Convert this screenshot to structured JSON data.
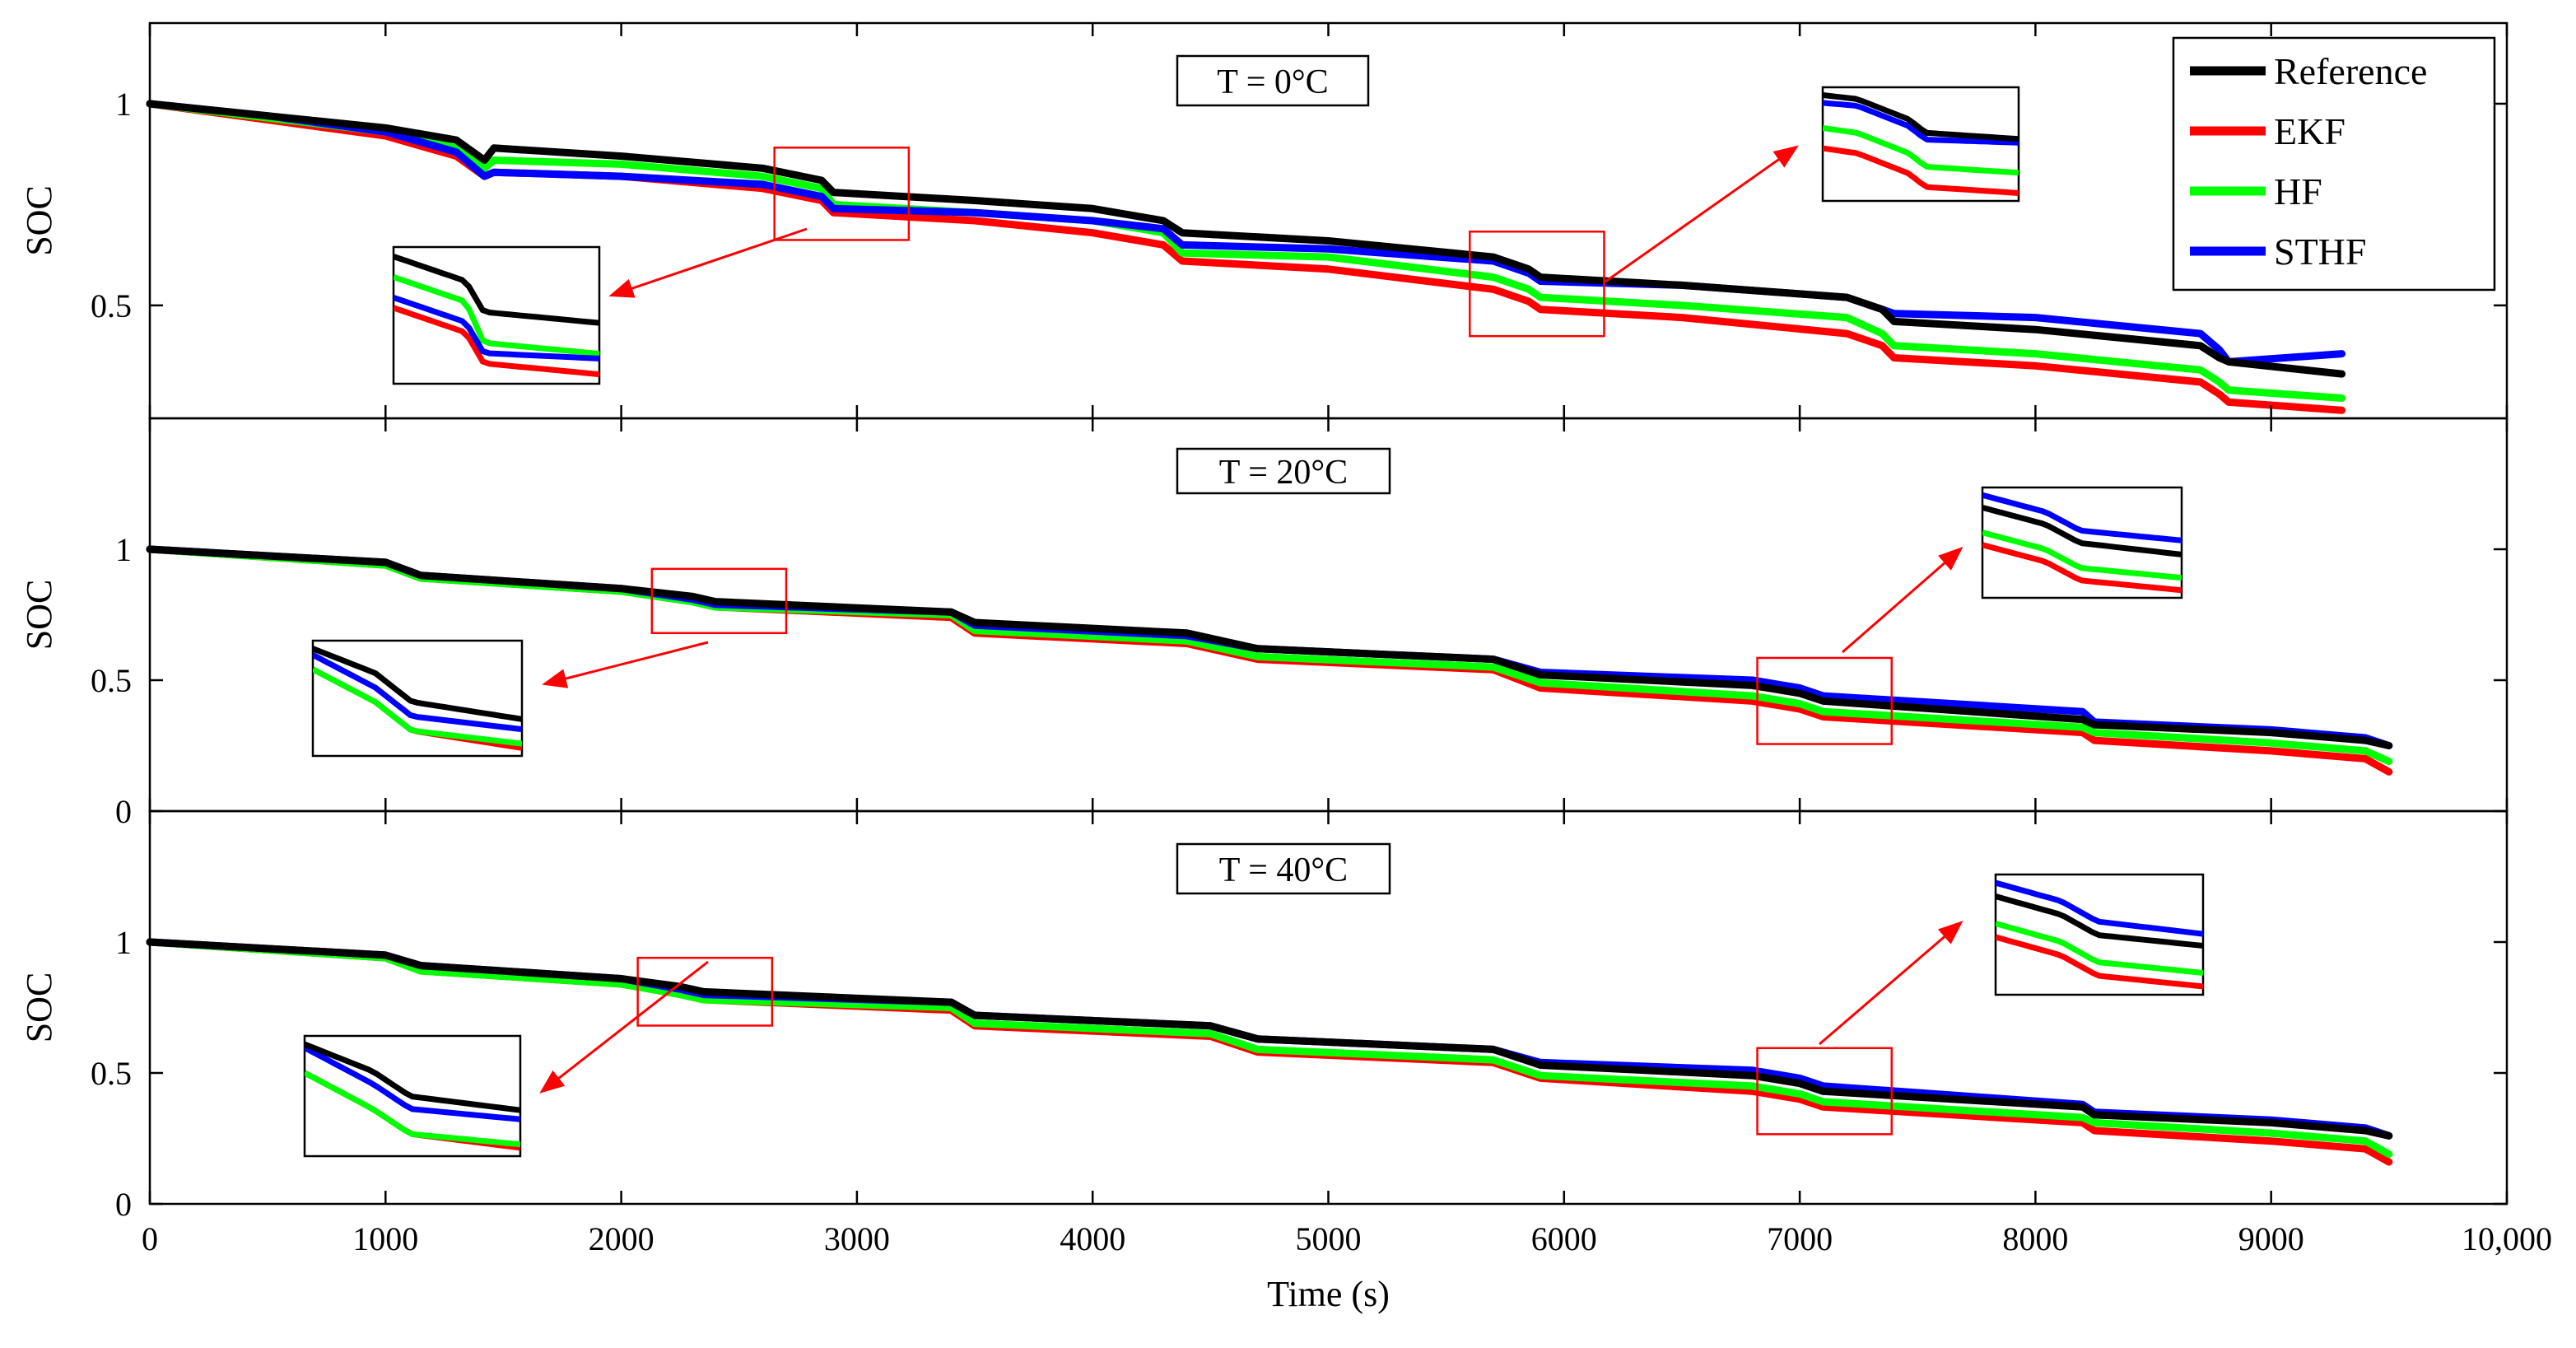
{
  "chart_data": {
    "type": "line",
    "xlabel": "Time (s)",
    "ylabel": "SOC",
    "xlim": [
      0,
      10000
    ],
    "x_ticks": [
      "0",
      "1000",
      "2000",
      "3000",
      "4000",
      "5000",
      "6000",
      "7000",
      "8000",
      "9000",
      "10,000"
    ],
    "x_tick_values": [
      0,
      1000,
      2000,
      3000,
      4000,
      5000,
      6000,
      7000,
      8000,
      9000,
      10000
    ],
    "legend": {
      "placement": "top-right",
      "entries": [
        {
          "name": "Reference",
          "color": "#000000"
        },
        {
          "name": "EKF",
          "color": "#ff0000"
        },
        {
          "name": "HF",
          "color": "#00ff00"
        },
        {
          "name": "STHF",
          "color": "#0000ff"
        }
      ]
    },
    "panels": [
      {
        "label": "T = 0°C",
        "ylim": [
          0.22,
          1.2
        ],
        "y_ticks": [
          "0.5",
          "1"
        ],
        "y_tick_values": [
          0.5,
          1
        ],
        "zoom_regions": [
          [
            2650,
            3220
          ],
          [
            5600,
            6170
          ]
        ],
        "series": [
          {
            "name": "Reference",
            "x": [
              0,
              500,
              1000,
              1300,
              1420,
              1460,
              2000,
              2600,
              2850,
              2900,
              3500,
              4000,
              4300,
              4380,
              5000,
              5700,
              5850,
              5900,
              6500,
              7200,
              7350,
              7400,
              8000,
              8700,
              8780,
              8820,
              9300
            ],
            "y": [
              1,
              0.97,
              0.94,
              0.91,
              0.86,
              0.89,
              0.87,
              0.84,
              0.81,
              0.78,
              0.76,
              0.74,
              0.71,
              0.68,
              0.66,
              0.62,
              0.59,
              0.57,
              0.55,
              0.52,
              0.49,
              0.46,
              0.44,
              0.4,
              0.37,
              0.36,
              0.33
            ]
          },
          {
            "name": "EKF",
            "x": [
              0,
              500,
              1000,
              1300,
              1420,
              1460,
              2000,
              2600,
              2850,
              2900,
              3500,
              4000,
              4300,
              4380,
              5000,
              5700,
              5850,
              5900,
              6500,
              7200,
              7350,
              7400,
              8000,
              8700,
              8780,
              8820,
              9300
            ],
            "y": [
              1,
              0.96,
              0.92,
              0.87,
              0.82,
              0.83,
              0.82,
              0.79,
              0.76,
              0.73,
              0.71,
              0.68,
              0.65,
              0.61,
              0.59,
              0.54,
              0.51,
              0.49,
              0.47,
              0.43,
              0.4,
              0.37,
              0.35,
              0.31,
              0.28,
              0.26,
              0.24
            ]
          },
          {
            "name": "HF",
            "x": [
              0,
              500,
              1000,
              1300,
              1420,
              1460,
              2000,
              2600,
              2850,
              2900,
              3500,
              4000,
              4300,
              4380,
              5000,
              5700,
              5850,
              5900,
              6500,
              7200,
              7350,
              7400,
              8000,
              8700,
              8780,
              8820,
              9300
            ],
            "y": [
              1,
              0.965,
              0.93,
              0.89,
              0.84,
              0.86,
              0.85,
              0.82,
              0.79,
              0.75,
              0.73,
              0.71,
              0.68,
              0.63,
              0.62,
              0.57,
              0.54,
              0.52,
              0.5,
              0.47,
              0.43,
              0.4,
              0.38,
              0.34,
              0.31,
              0.29,
              0.27
            ]
          },
          {
            "name": "STHF",
            "x": [
              0,
              500,
              1000,
              1300,
              1420,
              1460,
              2000,
              2600,
              2850,
              2900,
              3500,
              4000,
              4300,
              4380,
              5000,
              5700,
              5850,
              5900,
              6500,
              7200,
              7350,
              7400,
              8000,
              8700,
              8780,
              8820,
              9300
            ],
            "y": [
              1,
              0.97,
              0.93,
              0.88,
              0.82,
              0.83,
              0.82,
              0.8,
              0.77,
              0.74,
              0.73,
              0.71,
              0.69,
              0.65,
              0.64,
              0.61,
              0.58,
              0.56,
              0.55,
              0.52,
              0.49,
              0.48,
              0.47,
              0.43,
              0.39,
              0.36,
              0.38
            ]
          }
        ]
      },
      {
        "label": "T = 20°C",
        "ylim": [
          0,
          1.5
        ],
        "y_ticks": [
          "0",
          "0.5",
          "1"
        ],
        "y_tick_values": [
          0,
          0.5,
          1
        ],
        "zoom_regions": [
          [
            2130,
            2700
          ],
          [
            6820,
            7390
          ]
        ],
        "series": [
          {
            "name": "Reference",
            "x": [
              0,
              1000,
              1150,
              2000,
              2300,
              2400,
              3400,
              3500,
              4400,
              4700,
              5700,
              5900,
              6800,
              7000,
              7100,
              8200,
              8250,
              9000,
              9400,
              9500
            ],
            "y": [
              1,
              0.95,
              0.9,
              0.85,
              0.82,
              0.8,
              0.76,
              0.72,
              0.68,
              0.62,
              0.58,
              0.52,
              0.48,
              0.45,
              0.42,
              0.35,
              0.33,
              0.3,
              0.27,
              0.25
            ]
          },
          {
            "name": "EKF",
            "x": [
              0,
              1000,
              1150,
              2000,
              2300,
              2400,
              3400,
              3500,
              4400,
              4700,
              5700,
              5900,
              6800,
              7000,
              7100,
              8200,
              8250,
              9000,
              9400,
              9500
            ],
            "y": [
              1,
              0.94,
              0.89,
              0.84,
              0.8,
              0.78,
              0.74,
              0.68,
              0.64,
              0.58,
              0.54,
              0.47,
              0.42,
              0.39,
              0.36,
              0.3,
              0.27,
              0.23,
              0.2,
              0.15
            ]
          },
          {
            "name": "HF",
            "x": [
              0,
              1000,
              1150,
              2000,
              2300,
              2400,
              3400,
              3500,
              4400,
              4700,
              5700,
              5900,
              6800,
              7000,
              7100,
              8200,
              8250,
              9000,
              9400,
              9500
            ],
            "y": [
              1,
              0.94,
              0.89,
              0.84,
              0.8,
              0.78,
              0.75,
              0.69,
              0.65,
              0.59,
              0.55,
              0.49,
              0.44,
              0.41,
              0.38,
              0.32,
              0.3,
              0.26,
              0.23,
              0.19
            ]
          },
          {
            "name": "STHF",
            "x": [
              0,
              1000,
              1150,
              2000,
              2300,
              2400,
              3400,
              3500,
              4400,
              4700,
              5700,
              5900,
              6800,
              7000,
              7100,
              8200,
              8250,
              9000,
              9400,
              9500
            ],
            "y": [
              1,
              0.95,
              0.9,
              0.85,
              0.81,
              0.79,
              0.76,
              0.71,
              0.67,
              0.62,
              0.58,
              0.53,
              0.5,
              0.47,
              0.44,
              0.38,
              0.34,
              0.31,
              0.28,
              0.25
            ]
          }
        ]
      },
      {
        "label": "T = 40°C",
        "ylim": [
          0,
          1.5
        ],
        "y_ticks": [
          "0",
          "0.5",
          "1"
        ],
        "y_tick_values": [
          0,
          0.5,
          1
        ],
        "zoom_regions": [
          [
            2070,
            2640
          ],
          [
            6820,
            7390
          ]
        ],
        "series": [
          {
            "name": "Reference",
            "x": [
              0,
              1000,
              1150,
              2000,
              2250,
              2350,
              3400,
              3500,
              4500,
              4700,
              5700,
              5900,
              6800,
              7000,
              7100,
              8200,
              8250,
              9000,
              9400,
              9500
            ],
            "y": [
              1,
              0.95,
              0.91,
              0.86,
              0.83,
              0.81,
              0.77,
              0.72,
              0.68,
              0.63,
              0.59,
              0.53,
              0.49,
              0.46,
              0.43,
              0.37,
              0.34,
              0.31,
              0.28,
              0.26
            ]
          },
          {
            "name": "EKF",
            "x": [
              0,
              1000,
              1150,
              2000,
              2250,
              2350,
              3400,
              3500,
              4500,
              4700,
              5700,
              5900,
              6800,
              7000,
              7100,
              8200,
              8250,
              9000,
              9400,
              9500
            ],
            "y": [
              1,
              0.94,
              0.89,
              0.84,
              0.8,
              0.78,
              0.74,
              0.68,
              0.64,
              0.58,
              0.54,
              0.48,
              0.43,
              0.4,
              0.37,
              0.31,
              0.28,
              0.24,
              0.21,
              0.16
            ]
          },
          {
            "name": "HF",
            "x": [
              0,
              1000,
              1150,
              2000,
              2250,
              2350,
              3400,
              3500,
              4500,
              4700,
              5700,
              5900,
              6800,
              7000,
              7100,
              8200,
              8250,
              9000,
              9400,
              9500
            ],
            "y": [
              1,
              0.94,
              0.89,
              0.84,
              0.8,
              0.78,
              0.75,
              0.69,
              0.65,
              0.59,
              0.55,
              0.49,
              0.45,
              0.42,
              0.39,
              0.33,
              0.31,
              0.27,
              0.24,
              0.19
            ]
          },
          {
            "name": "STHF",
            "x": [
              0,
              1000,
              1150,
              2000,
              2250,
              2350,
              3400,
              3500,
              4500,
              4700,
              5700,
              5900,
              6800,
              7000,
              7100,
              8200,
              8250,
              9000,
              9400,
              9500
            ],
            "y": [
              1,
              0.95,
              0.91,
              0.86,
              0.82,
              0.8,
              0.77,
              0.72,
              0.68,
              0.63,
              0.59,
              0.54,
              0.51,
              0.48,
              0.45,
              0.38,
              0.35,
              0.32,
              0.29,
              0.26
            ]
          }
        ]
      }
    ]
  }
}
